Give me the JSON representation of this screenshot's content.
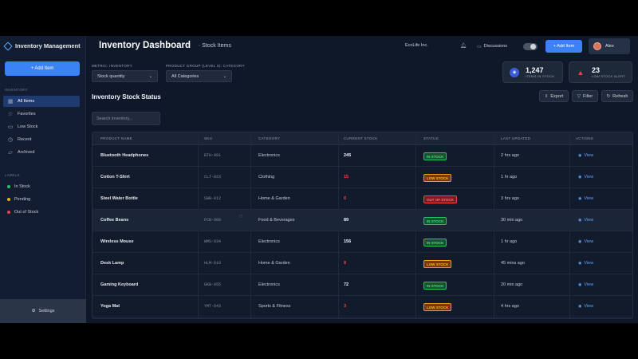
{
  "sidebar": {
    "brand": "Inventory Management",
    "add_item": "+ Add Item",
    "section_inventory": "INVENTORY",
    "items": [
      {
        "label": "All Items",
        "icon": "grid-icon",
        "glyph": "▦"
      },
      {
        "label": "Favorites",
        "icon": "star-icon",
        "glyph": "☆"
      },
      {
        "label": "Low Stock",
        "icon": "archive-icon",
        "glyph": "▭"
      },
      {
        "label": "Recent",
        "icon": "clock-icon",
        "glyph": "◷"
      },
      {
        "label": "Archived",
        "icon": "folder-icon",
        "glyph": "▱"
      }
    ],
    "section_labels": "LABELS",
    "labels": [
      {
        "label": "In Stock",
        "color": "#22c55e"
      },
      {
        "label": "Pending",
        "color": "#eab308"
      },
      {
        "label": "Out of Stock",
        "color": "#ef4444"
      }
    ],
    "settings": "Settings"
  },
  "header": {
    "title": "Inventory Dashboard",
    "subtitle": "· Stock Items",
    "org": "EcoLife Inc.",
    "discussions": "Discussions",
    "add_item": "+ Add Item",
    "user": "Alex"
  },
  "filters": {
    "metric_label": "METRIC: INVENTORY",
    "metric_value": "Stock quantity",
    "group_label": "PRODUCT GROUP (LEVEL 0): CATEGORY",
    "group_value": "All Categories"
  },
  "stats": [
    {
      "value": "1,247",
      "label": "ITEMS IN STOCK"
    },
    {
      "value": "23",
      "label": "LOW STOCK ALERT"
    }
  ],
  "section": {
    "title": "Inventory Stock Status",
    "export": "Export",
    "filter": "Filter",
    "refresh": "Refresh",
    "search_placeholder": "Search inventory..."
  },
  "table": {
    "headers": [
      "PRODUCT NAME",
      "SKU",
      "CATEGORY",
      "CURRENT STOCK",
      "STATUS",
      "LAST UPDATED",
      "ACTIONS"
    ],
    "rows": [
      {
        "name": "Bluetooth Headphones",
        "sku": "BTH-001",
        "category": "Electronics",
        "stock": "245",
        "status": "IN STOCK",
        "updated": "2 hrs ago",
        "action": "View"
      },
      {
        "name": "Cotton T-Shirt",
        "sku": "CLT-023",
        "category": "Clothing",
        "stock": "15",
        "status": "LOW STOCK",
        "updated": "1 hr ago",
        "action": "View"
      },
      {
        "name": "Steel Water Bottle",
        "sku": "SWB-012",
        "category": "Home & Garden",
        "stock": "0",
        "status": "OUT OF STOCK",
        "updated": "3 hrs ago",
        "action": "View"
      },
      {
        "name": "Coffee Beans",
        "sku": "FCB-089",
        "category": "Food & Beverages",
        "stock": "89",
        "status": "IN STOCK",
        "updated": "30 min ago",
        "action": "View"
      },
      {
        "name": "Wireless Mouse",
        "sku": "WMS-034",
        "category": "Electronics",
        "stock": "156",
        "status": "IN STOCK",
        "updated": "1 hr ago",
        "action": "View"
      },
      {
        "name": "Desk Lamp",
        "sku": "HLM-018",
        "category": "Home & Garden",
        "stock": "8",
        "status": "LOW STOCK",
        "updated": "45 mins ago",
        "action": "View"
      },
      {
        "name": "Gaming Keyboard",
        "sku": "GKB-055",
        "category": "Electronics",
        "stock": "72",
        "status": "IN STOCK",
        "updated": "20 min ago",
        "action": "View"
      },
      {
        "name": "Yoga Mat",
        "sku": "YMT-043",
        "category": "Sports & Fitness",
        "stock": "3",
        "status": "LOW STOCK",
        "updated": "4 hrs ago",
        "action": "View"
      }
    ]
  },
  "colors": {
    "accent": "#3b82f6",
    "in_stock": "#22c55e",
    "low_stock": "#f59e0b",
    "out_of_stock": "#ef4444"
  }
}
